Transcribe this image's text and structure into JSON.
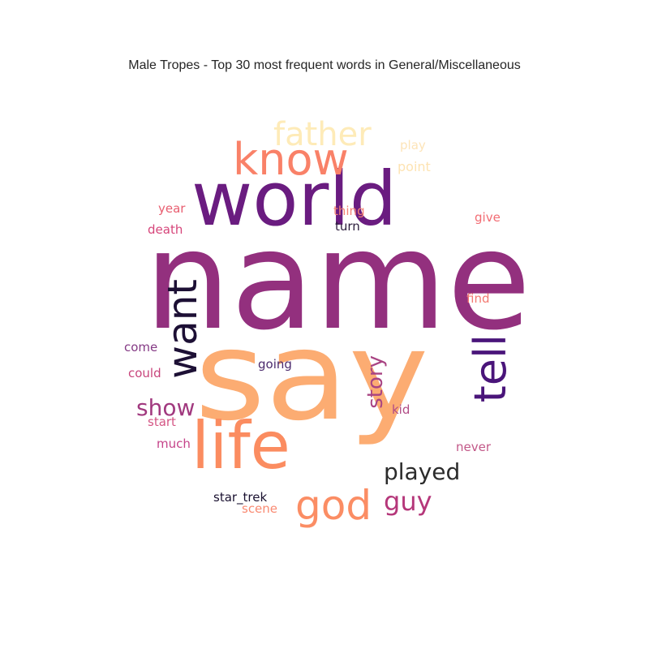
{
  "title": "Male Tropes - Top 30 most frequent words in General/Miscellaneous",
  "words": [
    {
      "text": "name",
      "color": "#93307e"
    },
    {
      "text": "say",
      "color": "#fcac72"
    },
    {
      "text": "world",
      "color": "#6a1c80"
    },
    {
      "text": "life",
      "color": "#fb8c60"
    },
    {
      "text": "know",
      "color": "#f98168"
    },
    {
      "text": "tell",
      "color": "#4a157a"
    },
    {
      "text": "want",
      "color": "#1d1035"
    },
    {
      "text": "father",
      "color": "#feebb8"
    },
    {
      "text": "god",
      "color": "#fb8d64"
    },
    {
      "text": "played",
      "color": "#2b2b2b"
    },
    {
      "text": "show",
      "color": "#a1397f"
    },
    {
      "text": "guy",
      "color": "#b5377a"
    },
    {
      "text": "story",
      "color": "#a94483"
    },
    {
      "text": "star_trek",
      "color": "#1a1130"
    },
    {
      "text": "scene",
      "color": "#f98a72"
    },
    {
      "text": "play",
      "color": "#fde4b8"
    },
    {
      "text": "point",
      "color": "#fde3b2"
    },
    {
      "text": "year",
      "color": "#e85e70"
    },
    {
      "text": "thing",
      "color": "#f48474"
    },
    {
      "text": "give",
      "color": "#f26c73"
    },
    {
      "text": "death",
      "color": "#d6457a"
    },
    {
      "text": "turn",
      "color": "#2a1b3a"
    },
    {
      "text": "find",
      "color": "#f37a72"
    },
    {
      "text": "come",
      "color": "#853a85"
    },
    {
      "text": "going",
      "color": "#4b2a6d"
    },
    {
      "text": "could",
      "color": "#c8457c"
    },
    {
      "text": "kid",
      "color": "#b14c86"
    },
    {
      "text": "start",
      "color": "#d45584"
    },
    {
      "text": "much",
      "color": "#c5438a"
    },
    {
      "text": "never",
      "color": "#c25888"
    }
  ]
}
